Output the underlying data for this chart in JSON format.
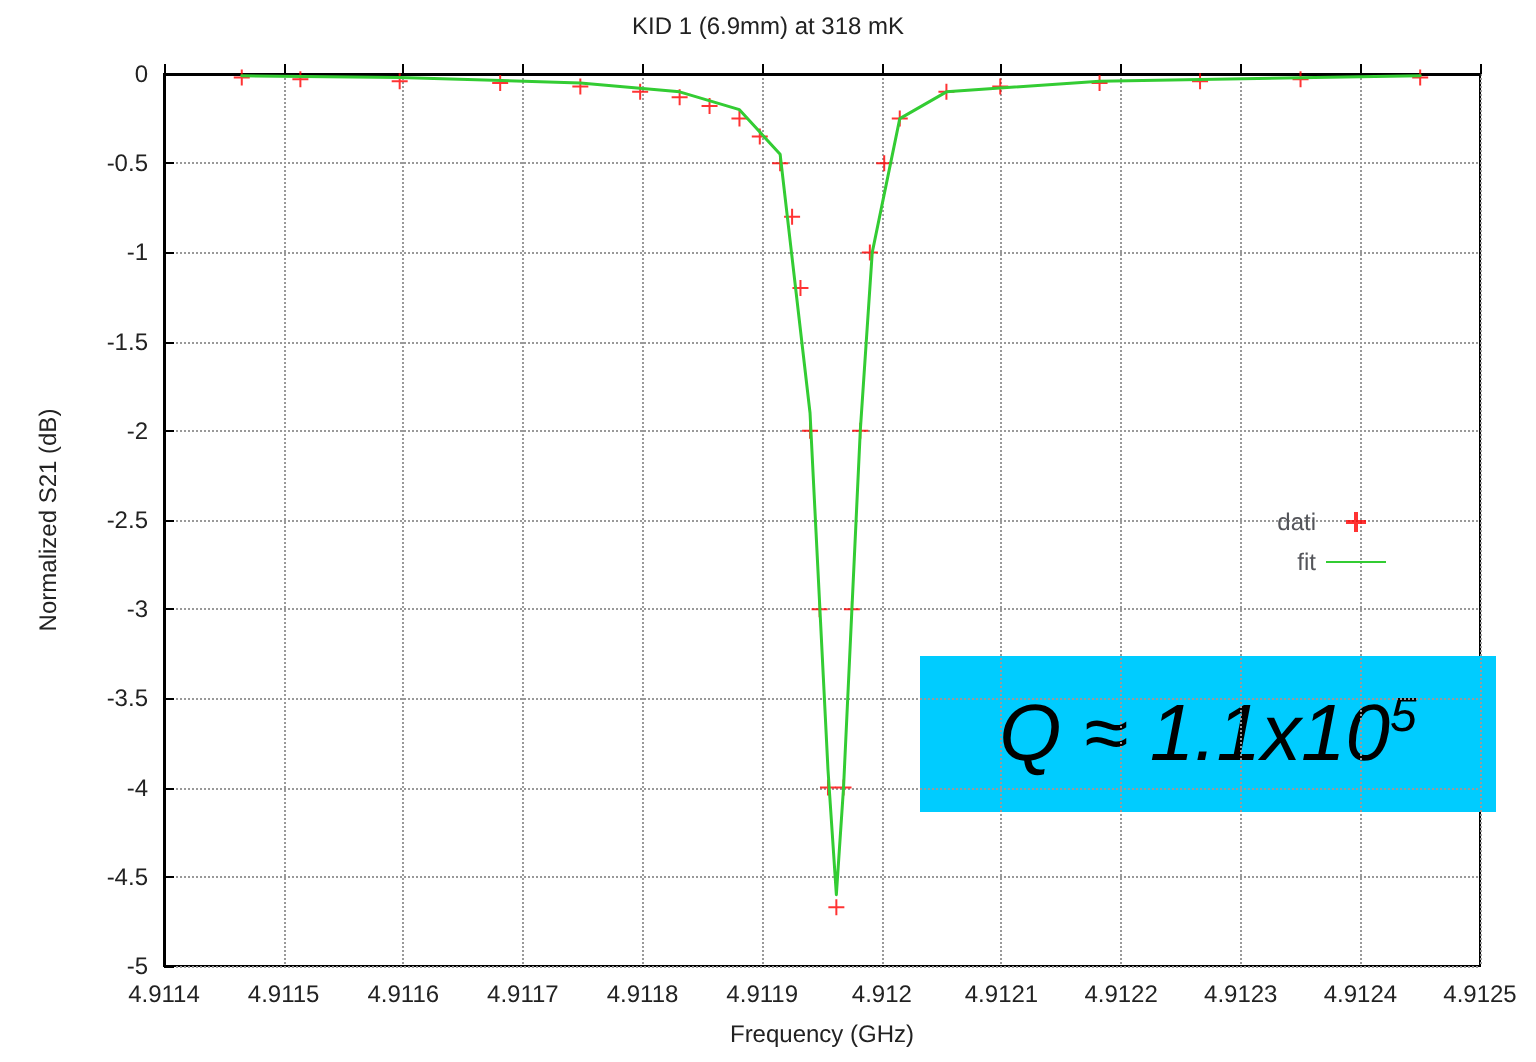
{
  "chart_data": {
    "type": "scatter",
    "title": "KID 1 (6.9mm) at 318 mK",
    "xlabel": "Frequency (GHz)",
    "ylabel": "Normalized S21 (dB)",
    "series": [
      {
        "name": "dati",
        "color": "#ff0000",
        "marker": "cross",
        "x": [
          4.911465,
          4.911514,
          4.911597,
          4.911681,
          4.911748,
          4.911798,
          4.911831,
          4.911856,
          4.911881,
          4.911898,
          4.911915,
          4.911925,
          4.911932,
          4.91194,
          4.911948,
          4.911955,
          4.911962,
          4.911968,
          4.911975,
          4.911982,
          4.91199,
          4.912002,
          4.912015,
          4.912054,
          4.912099,
          4.912182,
          4.912266,
          4.91235,
          4.91245
        ],
        "values": [
          -0.02,
          -0.03,
          -0.04,
          -0.05,
          -0.07,
          -0.1,
          -0.13,
          -0.18,
          -0.25,
          -0.35,
          -0.5,
          -0.8,
          -1.2,
          -2.0,
          -3.0,
          -4.0,
          -4.67,
          -4.0,
          -3.0,
          -2.0,
          -1.0,
          -0.5,
          -0.25,
          -0.1,
          -0.07,
          -0.05,
          -0.04,
          -0.03,
          -0.02
        ]
      },
      {
        "name": "fit",
        "type": "line",
        "color": "#33cc33",
        "marker": "none",
        "line_style": "solid",
        "x": [
          4.911465,
          4.911597,
          4.911748,
          4.911831,
          4.911881,
          4.911915,
          4.91194,
          4.911955,
          4.911962,
          4.911968,
          4.911982,
          4.911992,
          4.912015,
          4.912054,
          4.912182,
          4.91245
        ],
        "values": [
          -0.01,
          -0.02,
          -0.05,
          -0.1,
          -0.2,
          -0.45,
          -1.9,
          -3.9,
          -4.6,
          -4.0,
          -2.0,
          -1.0,
          -0.25,
          -0.1,
          -0.04,
          -0.01
        ]
      }
    ],
    "xlim": [
      4.9114,
      4.9125
    ],
    "xticks": [
      4.9114,
      4.9115,
      4.9116,
      4.9117,
      4.9118,
      4.9119,
      4.912,
      4.9121,
      4.9122,
      4.9123,
      4.9124,
      4.9125
    ],
    "ylim": [
      -5,
      0
    ],
    "yticks": [
      -5,
      -4.5,
      -4,
      -3.5,
      -3,
      -2.5,
      -2,
      -1.5,
      -1,
      -0.5,
      0
    ],
    "grid": true,
    "legend": "right",
    "annotations": [
      "Q ≈ 1.1x10$^{5}$"
    ]
  }
}
